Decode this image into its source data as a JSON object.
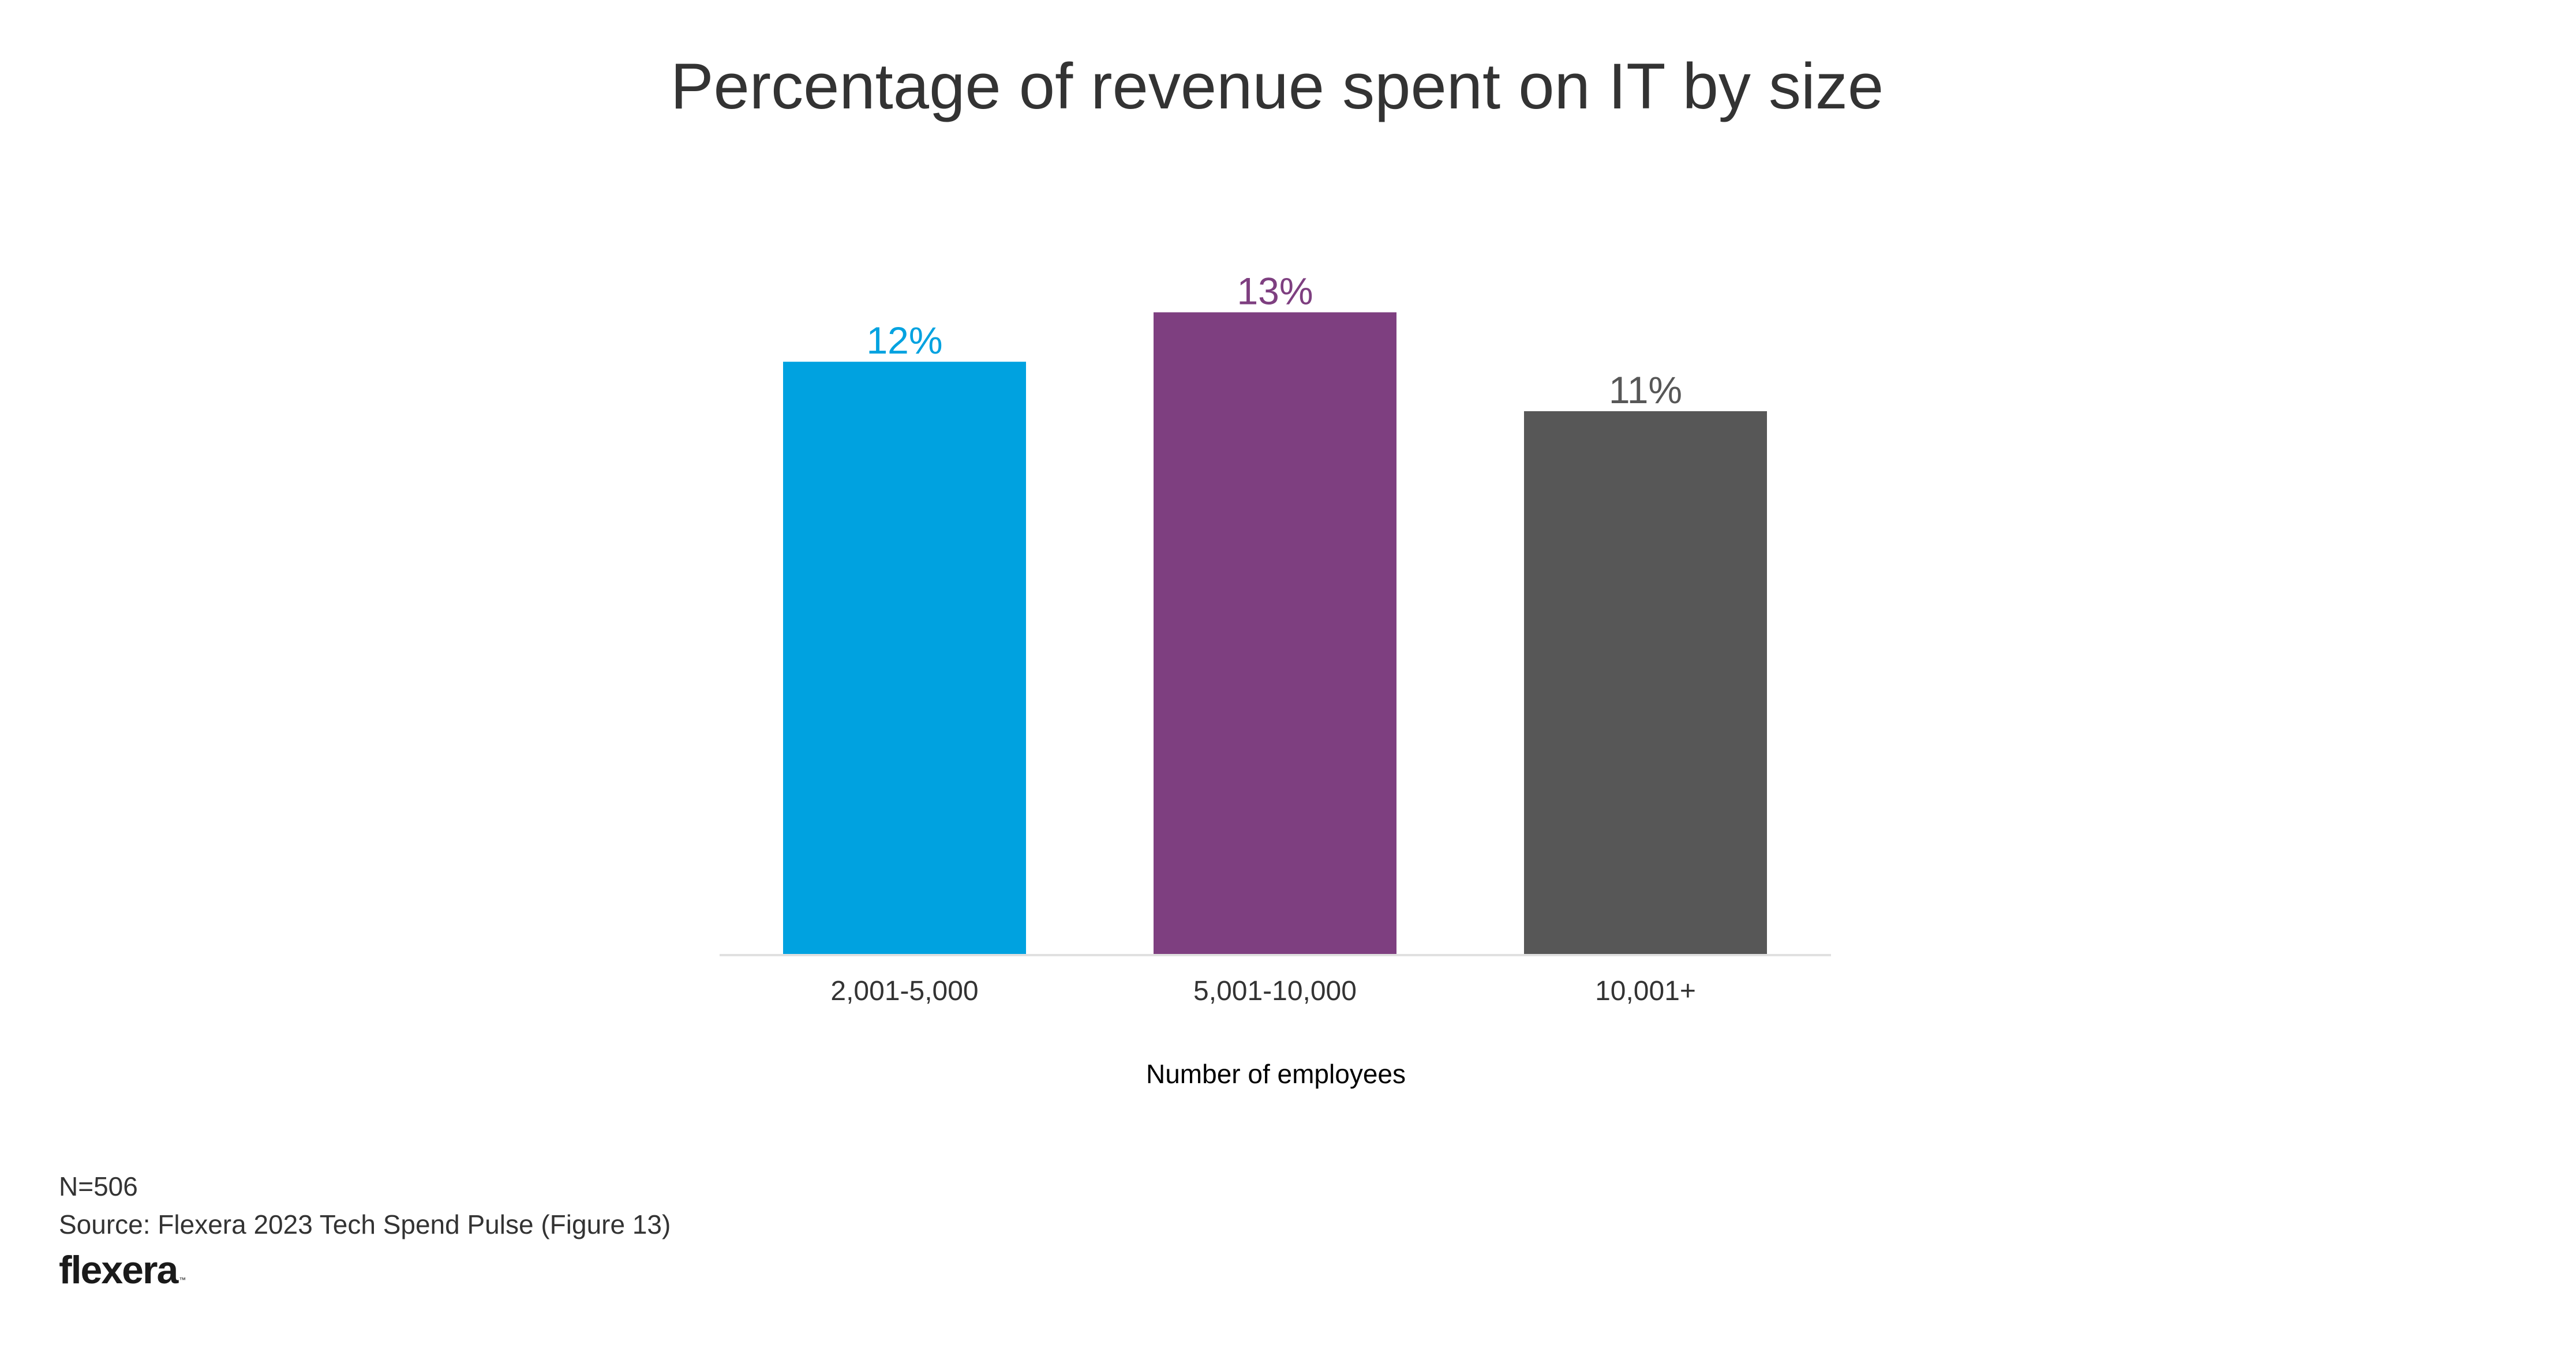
{
  "chart_data": {
    "type": "bar",
    "title": "Percentage of revenue spent on IT by size",
    "xlabel": "Number of employees",
    "ylabel": "",
    "categories": [
      "2,001-5,000",
      "5,001-10,000",
      "10,001+"
    ],
    "values": [
      12,
      13,
      11
    ],
    "value_labels": [
      "12%",
      "13%",
      "11%"
    ],
    "unit": "%",
    "colors": [
      "#00A2E0",
      "#7E3F80",
      "#575757"
    ],
    "ylim": [
      0,
      15
    ],
    "grid": false,
    "legend": "none",
    "axis_line_color": "#E0E0E0"
  },
  "footer": {
    "sample_size": "N=506",
    "source": "Source: Flexera 2023 Tech Spend Pulse (Figure 13)",
    "logo_text": "flexera",
    "logo_tm": "™"
  }
}
